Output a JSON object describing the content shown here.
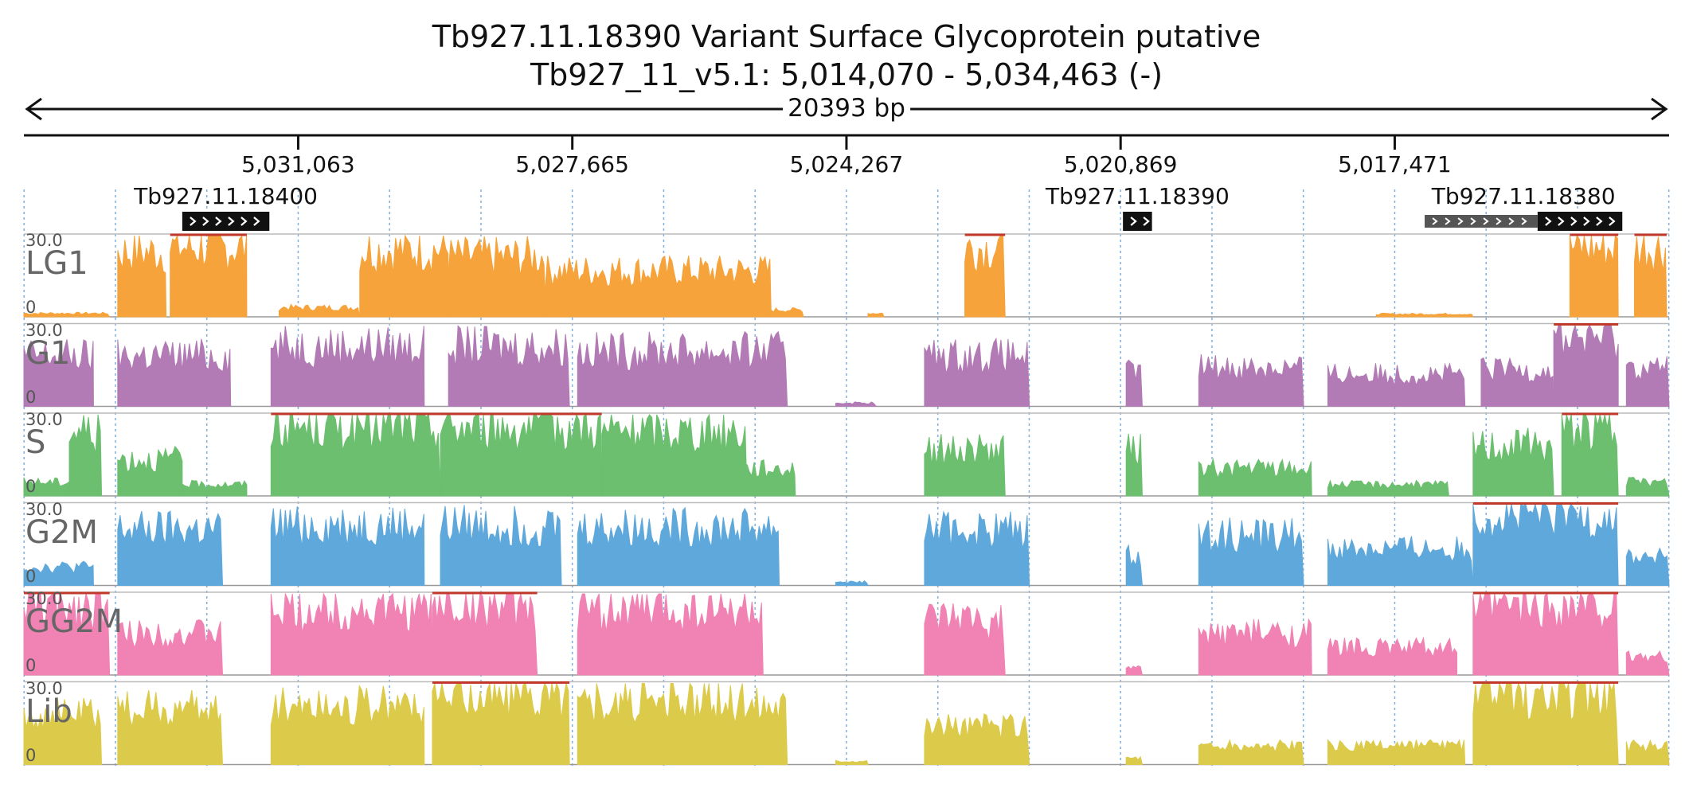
{
  "chart_data": {
    "type": "area",
    "title": "Tb927.11.18390  Variant Surface Glycoprotein  putative",
    "subtitle": "Tb927_11_v5.1: 5,014,070 - 5,034,463 (-)",
    "span_label": "20393 bp",
    "xlim": [
      5034463,
      5014070
    ],
    "x_ticks": [
      "5,031,063",
      "5,027,665",
      "5,024,267",
      "5,020,869",
      "5,017,471"
    ],
    "genes": [
      {
        "name": "Tb927.11.18400",
        "start": 5032500,
        "end": 5031420,
        "strand": "+",
        "color": "#111111"
      },
      {
        "name": "Tb927.11.18390",
        "start": 5020840,
        "end": 5020480,
        "strand": "+",
        "color": "#111111"
      },
      {
        "name": "Tb927.11.18380",
        "start": 5015700,
        "end": 5014650,
        "strand": "+",
        "color": "#111111",
        "extension": {
          "start": 5017100,
          "end": 5015700,
          "color": "#555555"
        }
      }
    ],
    "ylim": [
      0,
      30.0
    ],
    "y_max_label": "30.0",
    "y_min_label": "0",
    "grid": "dotted-vertical",
    "series": [
      {
        "name": "LG1",
        "color": "#f5a33a",
        "segments": [
          {
            "from": 5034463,
            "to": 5033400,
            "level": 1.5
          },
          {
            "from": 5033300,
            "to": 5032700,
            "level": 28
          },
          {
            "from": 5032650,
            "to": 5031700,
            "level": 30
          },
          {
            "from": 5031300,
            "to": 5030300,
            "level": 4
          },
          {
            "from": 5030300,
            "to": 5029200,
            "level": 29
          },
          {
            "from": 5029200,
            "to": 5028000,
            "level": 26
          },
          {
            "from": 5028000,
            "to": 5025200,
            "level": 20
          },
          {
            "from": 5025200,
            "to": 5024800,
            "level": 3
          },
          {
            "from": 5024000,
            "to": 5023800,
            "level": 1.5
          },
          {
            "from": 5022800,
            "to": 5022300,
            "level": 30
          },
          {
            "from": 5017700,
            "to": 5016500,
            "level": 1.2
          },
          {
            "from": 5015300,
            "to": 5014700,
            "level": 30
          },
          {
            "from": 5014500,
            "to": 5014100,
            "level": 30
          }
        ]
      },
      {
        "name": "G1",
        "color": "#b27bb5",
        "segments": [
          {
            "from": 5034463,
            "to": 5033600,
            "level": 22
          },
          {
            "from": 5033300,
            "to": 5031900,
            "level": 22
          },
          {
            "from": 5031400,
            "to": 5029500,
            "level": 26
          },
          {
            "from": 5029200,
            "to": 5027700,
            "level": 26
          },
          {
            "from": 5027600,
            "to": 5025000,
            "level": 24
          },
          {
            "from": 5024400,
            "to": 5023900,
            "level": 1.5
          },
          {
            "from": 5023300,
            "to": 5022000,
            "level": 22
          },
          {
            "from": 5020800,
            "to": 5020600,
            "level": 15
          },
          {
            "from": 5019900,
            "to": 5018600,
            "level": 17
          },
          {
            "from": 5018300,
            "to": 5016600,
            "level": 14
          },
          {
            "from": 5016400,
            "to": 5015500,
            "level": 16
          },
          {
            "from": 5015500,
            "to": 5014700,
            "level": 30
          },
          {
            "from": 5014600,
            "to": 5014070,
            "level": 17
          }
        ]
      },
      {
        "name": "S",
        "color": "#6bbf6e",
        "segments": [
          {
            "from": 5034463,
            "to": 5033900,
            "level": 6
          },
          {
            "from": 5033900,
            "to": 5033500,
            "level": 28
          },
          {
            "from": 5033300,
            "to": 5032500,
            "level": 16
          },
          {
            "from": 5032500,
            "to": 5031700,
            "level": 5
          },
          {
            "from": 5031400,
            "to": 5029300,
            "level": 30
          },
          {
            "from": 5029300,
            "to": 5027300,
            "level": 30
          },
          {
            "from": 5027300,
            "to": 5025500,
            "level": 28
          },
          {
            "from": 5025500,
            "to": 5024900,
            "level": 12
          },
          {
            "from": 5023300,
            "to": 5022300,
            "level": 20
          },
          {
            "from": 5020800,
            "to": 5020600,
            "level": 20
          },
          {
            "from": 5019900,
            "to": 5018500,
            "level": 12
          },
          {
            "from": 5018300,
            "to": 5016800,
            "level": 5
          },
          {
            "from": 5016500,
            "to": 5015500,
            "level": 22
          },
          {
            "from": 5015400,
            "to": 5014700,
            "level": 30
          },
          {
            "from": 5014600,
            "to": 5014070,
            "level": 6
          }
        ]
      },
      {
        "name": "G2M",
        "color": "#5fa8dc",
        "segments": [
          {
            "from": 5034463,
            "to": 5033600,
            "level": 8
          },
          {
            "from": 5033300,
            "to": 5032000,
            "level": 24
          },
          {
            "from": 5031400,
            "to": 5029500,
            "level": 26
          },
          {
            "from": 5029300,
            "to": 5027800,
            "level": 26
          },
          {
            "from": 5027600,
            "to": 5025100,
            "level": 25
          },
          {
            "from": 5024400,
            "to": 5024000,
            "level": 1.5
          },
          {
            "from": 5023300,
            "to": 5022000,
            "level": 24
          },
          {
            "from": 5020800,
            "to": 5020600,
            "level": 13
          },
          {
            "from": 5019900,
            "to": 5018600,
            "level": 22
          },
          {
            "from": 5018300,
            "to": 5016500,
            "level": 16
          },
          {
            "from": 5016500,
            "to": 5014700,
            "level": 30
          },
          {
            "from": 5014600,
            "to": 5014070,
            "level": 12
          }
        ]
      },
      {
        "name": "GG2M",
        "color": "#f083b4",
        "segments": [
          {
            "from": 5034463,
            "to": 5033400,
            "level": 30
          },
          {
            "from": 5033300,
            "to": 5032000,
            "level": 18
          },
          {
            "from": 5031400,
            "to": 5029400,
            "level": 28
          },
          {
            "from": 5029400,
            "to": 5028100,
            "level": 30
          },
          {
            "from": 5027600,
            "to": 5025300,
            "level": 28
          },
          {
            "from": 5023300,
            "to": 5022300,
            "level": 23
          },
          {
            "from": 5020800,
            "to": 5020600,
            "level": 3
          },
          {
            "from": 5019900,
            "to": 5018500,
            "level": 18
          },
          {
            "from": 5018300,
            "to": 5016700,
            "level": 12
          },
          {
            "from": 5016500,
            "to": 5014700,
            "level": 30
          },
          {
            "from": 5014600,
            "to": 5014070,
            "level": 8
          }
        ]
      },
      {
        "name": "Lib",
        "color": "#dccb4a",
        "segments": [
          {
            "from": 5034463,
            "to": 5033500,
            "level": 22
          },
          {
            "from": 5033300,
            "to": 5032000,
            "level": 24
          },
          {
            "from": 5031400,
            "to": 5029500,
            "level": 26
          },
          {
            "from": 5029400,
            "to": 5027700,
            "level": 30
          },
          {
            "from": 5027600,
            "to": 5025000,
            "level": 27
          },
          {
            "from": 5024400,
            "to": 5024000,
            "level": 1.5
          },
          {
            "from": 5023300,
            "to": 5022000,
            "level": 17
          },
          {
            "from": 5020800,
            "to": 5020600,
            "level": 3
          },
          {
            "from": 5019900,
            "to": 5018600,
            "level": 8
          },
          {
            "from": 5018300,
            "to": 5016600,
            "level": 8
          },
          {
            "from": 5016500,
            "to": 5014700,
            "level": 30
          },
          {
            "from": 5014600,
            "to": 5014070,
            "level": 8
          }
        ]
      }
    ]
  }
}
